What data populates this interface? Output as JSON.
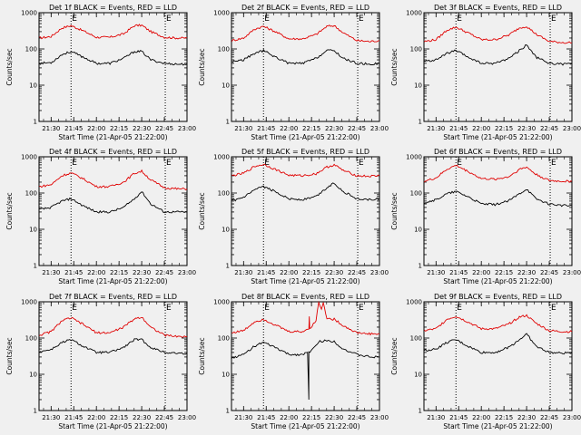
{
  "chart_data": {
    "type": "line",
    "xlabel": "Start Time (21-Apr-05 21:22:00)",
    "ylabel": "Counts/sec",
    "x_tick_labels": [
      "21:30",
      "21:45",
      "22:00",
      "22:15",
      "22:30",
      "22:45",
      "23:00"
    ],
    "x_ticks_hours": [
      21.5,
      21.75,
      22.0,
      22.25,
      22.5,
      22.75,
      23.0
    ],
    "xlim": [
      21.3667,
      23.0
    ],
    "ylim": [
      1,
      1000
    ],
    "y_scale": "log",
    "y_tick_labels": [
      "1",
      "10",
      "100",
      "1000"
    ],
    "y_ticks": [
      1,
      10,
      100,
      1000
    ],
    "markers": {
      "left": {
        "x": 21.72,
        "label": "E"
      },
      "right": {
        "x": 22.76,
        "label": "E"
      }
    },
    "series_colors": {
      "events": "#000000",
      "lld": "#e00000"
    },
    "panels": [
      {
        "title": "Det 1f BLACK = Events, RED = LLD",
        "events": {
          "x": [
            21.37,
            21.5,
            21.62,
            21.72,
            21.85,
            22.0,
            22.15,
            22.3,
            22.42,
            22.5,
            22.6,
            22.75,
            22.9,
            23.0
          ],
          "y": [
            40,
            42,
            70,
            85,
            60,
            40,
            40,
            55,
            85,
            85,
            50,
            40,
            38,
            38
          ]
        },
        "lld": {
          "x": [
            21.37,
            21.5,
            21.62,
            21.72,
            21.85,
            22.0,
            22.15,
            22.3,
            22.42,
            22.5,
            22.6,
            22.75,
            22.9,
            23.0
          ],
          "y": [
            200,
            220,
            380,
            440,
            320,
            210,
            210,
            260,
            440,
            450,
            300,
            210,
            200,
            200
          ]
        }
      },
      {
        "title": "Det 2f BLACK = Events, RED = LLD",
        "events": {
          "x": [
            21.37,
            21.5,
            21.62,
            21.72,
            21.85,
            22.0,
            22.15,
            22.3,
            22.42,
            22.5,
            22.6,
            22.75,
            22.9,
            23.0
          ],
          "y": [
            45,
            50,
            75,
            90,
            60,
            40,
            40,
            55,
            90,
            90,
            55,
            40,
            38,
            40
          ]
        },
        "lld": {
          "x": [
            21.37,
            21.5,
            21.62,
            21.72,
            21.85,
            22.0,
            22.15,
            22.3,
            22.42,
            22.5,
            22.6,
            22.75,
            22.9,
            23.0
          ],
          "y": [
            170,
            200,
            350,
            420,
            300,
            190,
            190,
            250,
            420,
            440,
            280,
            170,
            160,
            170
          ]
        }
      },
      {
        "title": "Det 3f BLACK = Events, RED = LLD",
        "events": {
          "x": [
            21.37,
            21.5,
            21.62,
            21.72,
            21.85,
            22.0,
            22.15,
            22.3,
            22.42,
            22.5,
            22.6,
            22.75,
            22.9,
            23.0
          ],
          "y": [
            45,
            50,
            75,
            90,
            60,
            40,
            40,
            55,
            90,
            130,
            60,
            40,
            38,
            40
          ]
        },
        "lld": {
          "x": [
            21.37,
            21.5,
            21.62,
            21.72,
            21.85,
            22.0,
            22.15,
            22.3,
            22.42,
            22.5,
            22.6,
            22.75,
            22.9,
            23.0
          ],
          "y": [
            160,
            180,
            330,
            400,
            280,
            180,
            180,
            240,
            380,
            420,
            260,
            160,
            150,
            150
          ]
        }
      },
      {
        "title": "Det 4f BLACK = Events, RED = LLD",
        "events": {
          "x": [
            21.37,
            21.5,
            21.62,
            21.72,
            21.85,
            22.0,
            22.15,
            22.3,
            22.42,
            22.5,
            22.6,
            22.75,
            22.9,
            23.0
          ],
          "y": [
            35,
            40,
            60,
            70,
            45,
            30,
            30,
            40,
            70,
            110,
            50,
            30,
            30,
            30
          ]
        },
        "lld": {
          "x": [
            21.37,
            21.5,
            21.62,
            21.72,
            21.85,
            22.0,
            22.15,
            22.3,
            22.42,
            22.5,
            22.6,
            22.75,
            22.9,
            23.0
          ],
          "y": [
            150,
            170,
            300,
            360,
            250,
            150,
            150,
            200,
            350,
            400,
            230,
            140,
            130,
            130
          ]
        }
      },
      {
        "title": "Det 5f BLACK = Events, RED = LLD",
        "events": {
          "x": [
            21.37,
            21.5,
            21.62,
            21.72,
            21.85,
            22.0,
            22.15,
            22.3,
            22.42,
            22.5,
            22.6,
            22.75,
            22.9,
            23.0
          ],
          "y": [
            60,
            75,
            120,
            150,
            110,
            70,
            65,
            80,
            140,
            190,
            110,
            70,
            65,
            70
          ]
        },
        "lld": {
          "x": [
            21.37,
            21.5,
            21.62,
            21.72,
            21.85,
            22.0,
            22.15,
            22.3,
            22.42,
            22.5,
            22.6,
            22.75,
            22.9,
            23.0
          ],
          "y": [
            300,
            350,
            540,
            620,
            450,
            310,
            300,
            340,
            520,
            600,
            420,
            300,
            290,
            300
          ]
        }
      },
      {
        "title": "Det 6f BLACK = Events, RED = LLD",
        "events": {
          "x": [
            21.37,
            21.5,
            21.62,
            21.72,
            21.85,
            22.0,
            22.15,
            22.3,
            22.42,
            22.5,
            22.6,
            22.75,
            22.9,
            23.0
          ],
          "y": [
            55,
            65,
            95,
            110,
            80,
            50,
            48,
            60,
            95,
            130,
            70,
            50,
            45,
            45
          ]
        },
        "lld": {
          "x": [
            21.37,
            21.5,
            21.62,
            21.72,
            21.85,
            22.0,
            22.15,
            22.3,
            22.42,
            22.5,
            22.6,
            22.75,
            22.9,
            23.0
          ],
          "y": [
            210,
            260,
            450,
            580,
            400,
            250,
            240,
            280,
            450,
            520,
            330,
            220,
            210,
            210
          ]
        }
      },
      {
        "title": "Det 7f BLACK = Events, RED = LLD",
        "events": {
          "x": [
            21.37,
            21.5,
            21.62,
            21.72,
            21.85,
            22.0,
            22.15,
            22.3,
            22.42,
            22.5,
            22.6,
            22.75,
            22.9,
            23.0
          ],
          "y": [
            42,
            48,
            75,
            90,
            60,
            40,
            40,
            55,
            90,
            90,
            55,
            40,
            38,
            38
          ]
        },
        "lld": {
          "x": [
            21.37,
            21.5,
            21.62,
            21.72,
            21.85,
            22.0,
            22.15,
            22.3,
            22.42,
            22.5,
            22.6,
            22.75,
            22.9,
            23.0
          ],
          "y": [
            120,
            150,
            300,
            360,
            240,
            140,
            140,
            200,
            340,
            380,
            200,
            120,
            110,
            110
          ]
        }
      },
      {
        "title": "Det 8f BLACK = Events, RED = LLD",
        "events": {
          "x": [
            21.37,
            21.5,
            21.62,
            21.72,
            21.85,
            22.0,
            22.15,
            22.22,
            22.22,
            22.22,
            22.3,
            22.33,
            22.42,
            22.5,
            22.6,
            22.75,
            22.9,
            23.0
          ],
          "y": [
            28,
            35,
            60,
            75,
            55,
            35,
            35,
            40,
            2,
            40,
            60,
            80,
            85,
            80,
            50,
            35,
            30,
            30
          ]
        },
        "lld": {
          "x": [
            21.37,
            21.5,
            21.62,
            21.72,
            21.85,
            22.0,
            22.15,
            22.22,
            22.23,
            22.23,
            22.3,
            22.33,
            22.36,
            22.38,
            22.42,
            22.5,
            22.6,
            22.75,
            22.9,
            23.0
          ],
          "y": [
            140,
            160,
            280,
            330,
            230,
            150,
            150,
            180,
            1000,
            180,
            300,
            1000,
            600,
            1000,
            340,
            330,
            220,
            140,
            130,
            130
          ]
        }
      },
      {
        "title": "Det 9f BLACK = Events, RED = LLD",
        "events": {
          "x": [
            21.37,
            21.5,
            21.62,
            21.72,
            21.85,
            22.0,
            22.15,
            22.3,
            22.42,
            22.5,
            22.6,
            22.75,
            22.9,
            23.0
          ],
          "y": [
            45,
            50,
            75,
            90,
            60,
            40,
            40,
            55,
            90,
            130,
            60,
            40,
            38,
            40
          ]
        },
        "lld": {
          "x": [
            21.37,
            21.5,
            21.62,
            21.72,
            21.85,
            22.0,
            22.15,
            22.3,
            22.42,
            22.5,
            22.6,
            22.75,
            22.9,
            23.0
          ],
          "y": [
            160,
            180,
            330,
            400,
            280,
            180,
            180,
            240,
            380,
            420,
            260,
            160,
            150,
            150
          ]
        }
      }
    ]
  }
}
